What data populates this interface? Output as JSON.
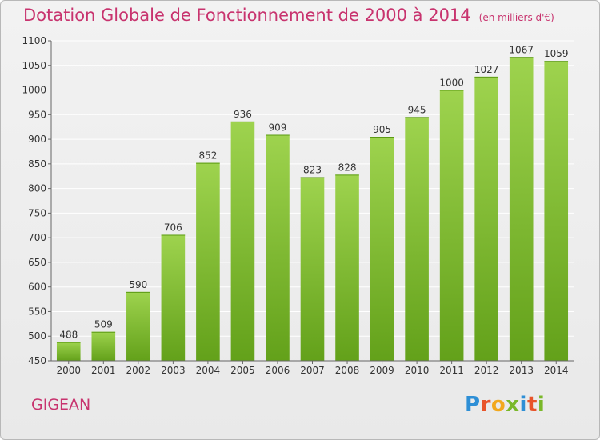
{
  "header": {
    "title": "Dotation Globale de Fonctionnement de 2000 à 2014",
    "unit": "(en milliers d'€)"
  },
  "footer": {
    "place": "GIGEAN",
    "logo_text": "Proxiti",
    "logo_colors": [
      "#2e8fd6",
      "#e8542a",
      "#f2a81d",
      "#7ab829",
      "#2e8fd6",
      "#e8542a",
      "#7ab829"
    ]
  },
  "chart_data": {
    "type": "bar",
    "categories": [
      "2000",
      "2001",
      "2002",
      "2003",
      "2004",
      "2005",
      "2006",
      "2007",
      "2008",
      "2009",
      "2010",
      "2011",
      "2012",
      "2013",
      "2014"
    ],
    "values": [
      488,
      509,
      590,
      706,
      852,
      936,
      909,
      823,
      828,
      905,
      945,
      1000,
      1027,
      1067,
      1059
    ],
    "title": "Dotation Globale de Fonctionnement de 2000 à 2014",
    "ylim": [
      450,
      1100
    ],
    "yticks": [
      450,
      500,
      550,
      600,
      650,
      700,
      750,
      800,
      850,
      900,
      950,
      1000,
      1050,
      1100
    ],
    "grid": true,
    "colors": {
      "bar_top": "#9ed34e",
      "bar_bottom": "#63a11a",
      "grid": "#ffffff",
      "axis": "#666666"
    }
  }
}
